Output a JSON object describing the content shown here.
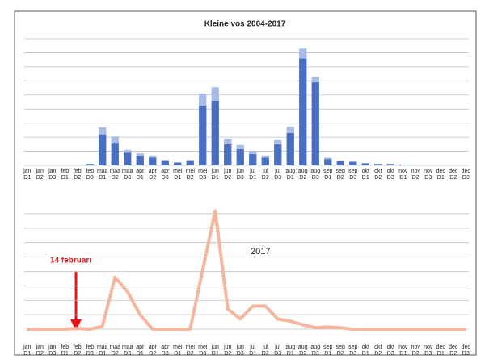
{
  "chart_data": [
    {
      "type": "bar",
      "title": "Kleine vos 2004-2017",
      "categories": [
        [
          "jan",
          "D1"
        ],
        [
          "jan",
          "D2"
        ],
        [
          "jan",
          "D3"
        ],
        [
          "feb",
          "D1"
        ],
        [
          "feb",
          "D2"
        ],
        [
          "feb",
          "D3"
        ],
        [
          "maa",
          "D1"
        ],
        [
          "maa",
          "D2"
        ],
        [
          "maa",
          "D3"
        ],
        [
          "apr",
          "D1"
        ],
        [
          "apr",
          "D2"
        ],
        [
          "apr",
          "D3"
        ],
        [
          "mei",
          "D1"
        ],
        [
          "mei",
          "D2"
        ],
        [
          "mei",
          "D3"
        ],
        [
          "jun",
          "D1"
        ],
        [
          "jun",
          "D2"
        ],
        [
          "jun",
          "D3"
        ],
        [
          "jul",
          "D1"
        ],
        [
          "jul",
          "D2"
        ],
        [
          "jul",
          "D3"
        ],
        [
          "aug",
          "D1"
        ],
        [
          "aug",
          "D2"
        ],
        [
          "aug",
          "D3"
        ],
        [
          "sep",
          "D1"
        ],
        [
          "sep",
          "D2"
        ],
        [
          "sep",
          "D3"
        ],
        [
          "okt",
          "D1"
        ],
        [
          "okt",
          "D2"
        ],
        [
          "okt",
          "D3"
        ],
        [
          "nov",
          "D1"
        ],
        [
          "nov",
          "D2"
        ],
        [
          "nov",
          "D3"
        ],
        [
          "dec",
          "D1"
        ],
        [
          "dec",
          "D2"
        ],
        [
          "dec",
          "D3"
        ]
      ],
      "series": [
        {
          "color": "#4a6fc1",
          "values": [
            0,
            0,
            0,
            0,
            0,
            0.1,
            2.2,
            1.6,
            0.9,
            0.7,
            0.55,
            0.3,
            0.2,
            0.3,
            4.2,
            4.6,
            1.5,
            1.15,
            0.8,
            0.55,
            1.5,
            2.3,
            7.6,
            5.9,
            0.45,
            0.3,
            0.25,
            0.15,
            0.1,
            0.1,
            0.05,
            0,
            0,
            0,
            0,
            0
          ]
        },
        {
          "color": "#a9bce6",
          "values": [
            0,
            0,
            0,
            0,
            0,
            0,
            0.5,
            0.45,
            0.2,
            0.15,
            0.15,
            0.1,
            0,
            0.1,
            0.9,
            0.95,
            0.4,
            0.3,
            0.2,
            0.15,
            0.35,
            0.45,
            0.7,
            0.4,
            0.1,
            0.05,
            0.05,
            0,
            0,
            0,
            0,
            0,
            0,
            0,
            0,
            0
          ]
        }
      ],
      "ylim": [
        0,
        9
      ],
      "yticks": [
        0,
        1,
        2,
        3,
        4,
        5,
        6,
        7,
        8,
        9
      ],
      "grid": true
    },
    {
      "type": "line",
      "categories": [
        [
          "jan",
          "D1"
        ],
        [
          "jan",
          "D2"
        ],
        [
          "jan",
          "D3"
        ],
        [
          "feb",
          "D1"
        ],
        [
          "feb",
          "D2"
        ],
        [
          "feb",
          "D3"
        ],
        [
          "maa",
          "D1"
        ],
        [
          "maa",
          "D2"
        ],
        [
          "maa",
          "D3"
        ],
        [
          "apr",
          "D1"
        ],
        [
          "apr",
          "D2"
        ],
        [
          "apr",
          "D3"
        ],
        [
          "mei",
          "D1"
        ],
        [
          "mei",
          "D2"
        ],
        [
          "mei",
          "D3"
        ],
        [
          "jun",
          "D1"
        ],
        [
          "jun",
          "D2"
        ],
        [
          "jun",
          "D3"
        ],
        [
          "jul",
          "D1"
        ],
        [
          "jul",
          "D2"
        ],
        [
          "jul",
          "D3"
        ],
        [
          "aug",
          "D1"
        ],
        [
          "aug",
          "D2"
        ],
        [
          "aug",
          "D3"
        ],
        [
          "sep",
          "D1"
        ],
        [
          "sep",
          "D2"
        ],
        [
          "sep",
          "D3"
        ],
        [
          "okt",
          "D1"
        ],
        [
          "okt",
          "D2"
        ],
        [
          "okt",
          "D3"
        ],
        [
          "nov",
          "D1"
        ],
        [
          "nov",
          "D2"
        ],
        [
          "nov",
          "D3"
        ],
        [
          "dec",
          "D1"
        ],
        [
          "dec",
          "D2"
        ],
        [
          "dec",
          "D3"
        ]
      ],
      "series": [
        {
          "name": "2017",
          "color": "#f4b79d",
          "values": [
            0,
            0,
            0,
            0,
            0.05,
            0,
            0.2,
            3.6,
            2.6,
            1.0,
            0,
            0,
            0,
            0,
            4.1,
            8.2,
            1.4,
            0.7,
            1.6,
            1.6,
            0.7,
            0.55,
            0.3,
            0.1,
            0.15,
            0.1,
            0,
            0,
            0,
            0,
            0,
            0,
            0,
            0,
            0,
            0
          ]
        }
      ],
      "annotation": "14 februari",
      "ylim": [
        0,
        8.5
      ],
      "yticks": [
        0,
        1,
        2,
        3,
        4,
        5,
        6,
        7,
        8
      ],
      "grid": true
    }
  ]
}
